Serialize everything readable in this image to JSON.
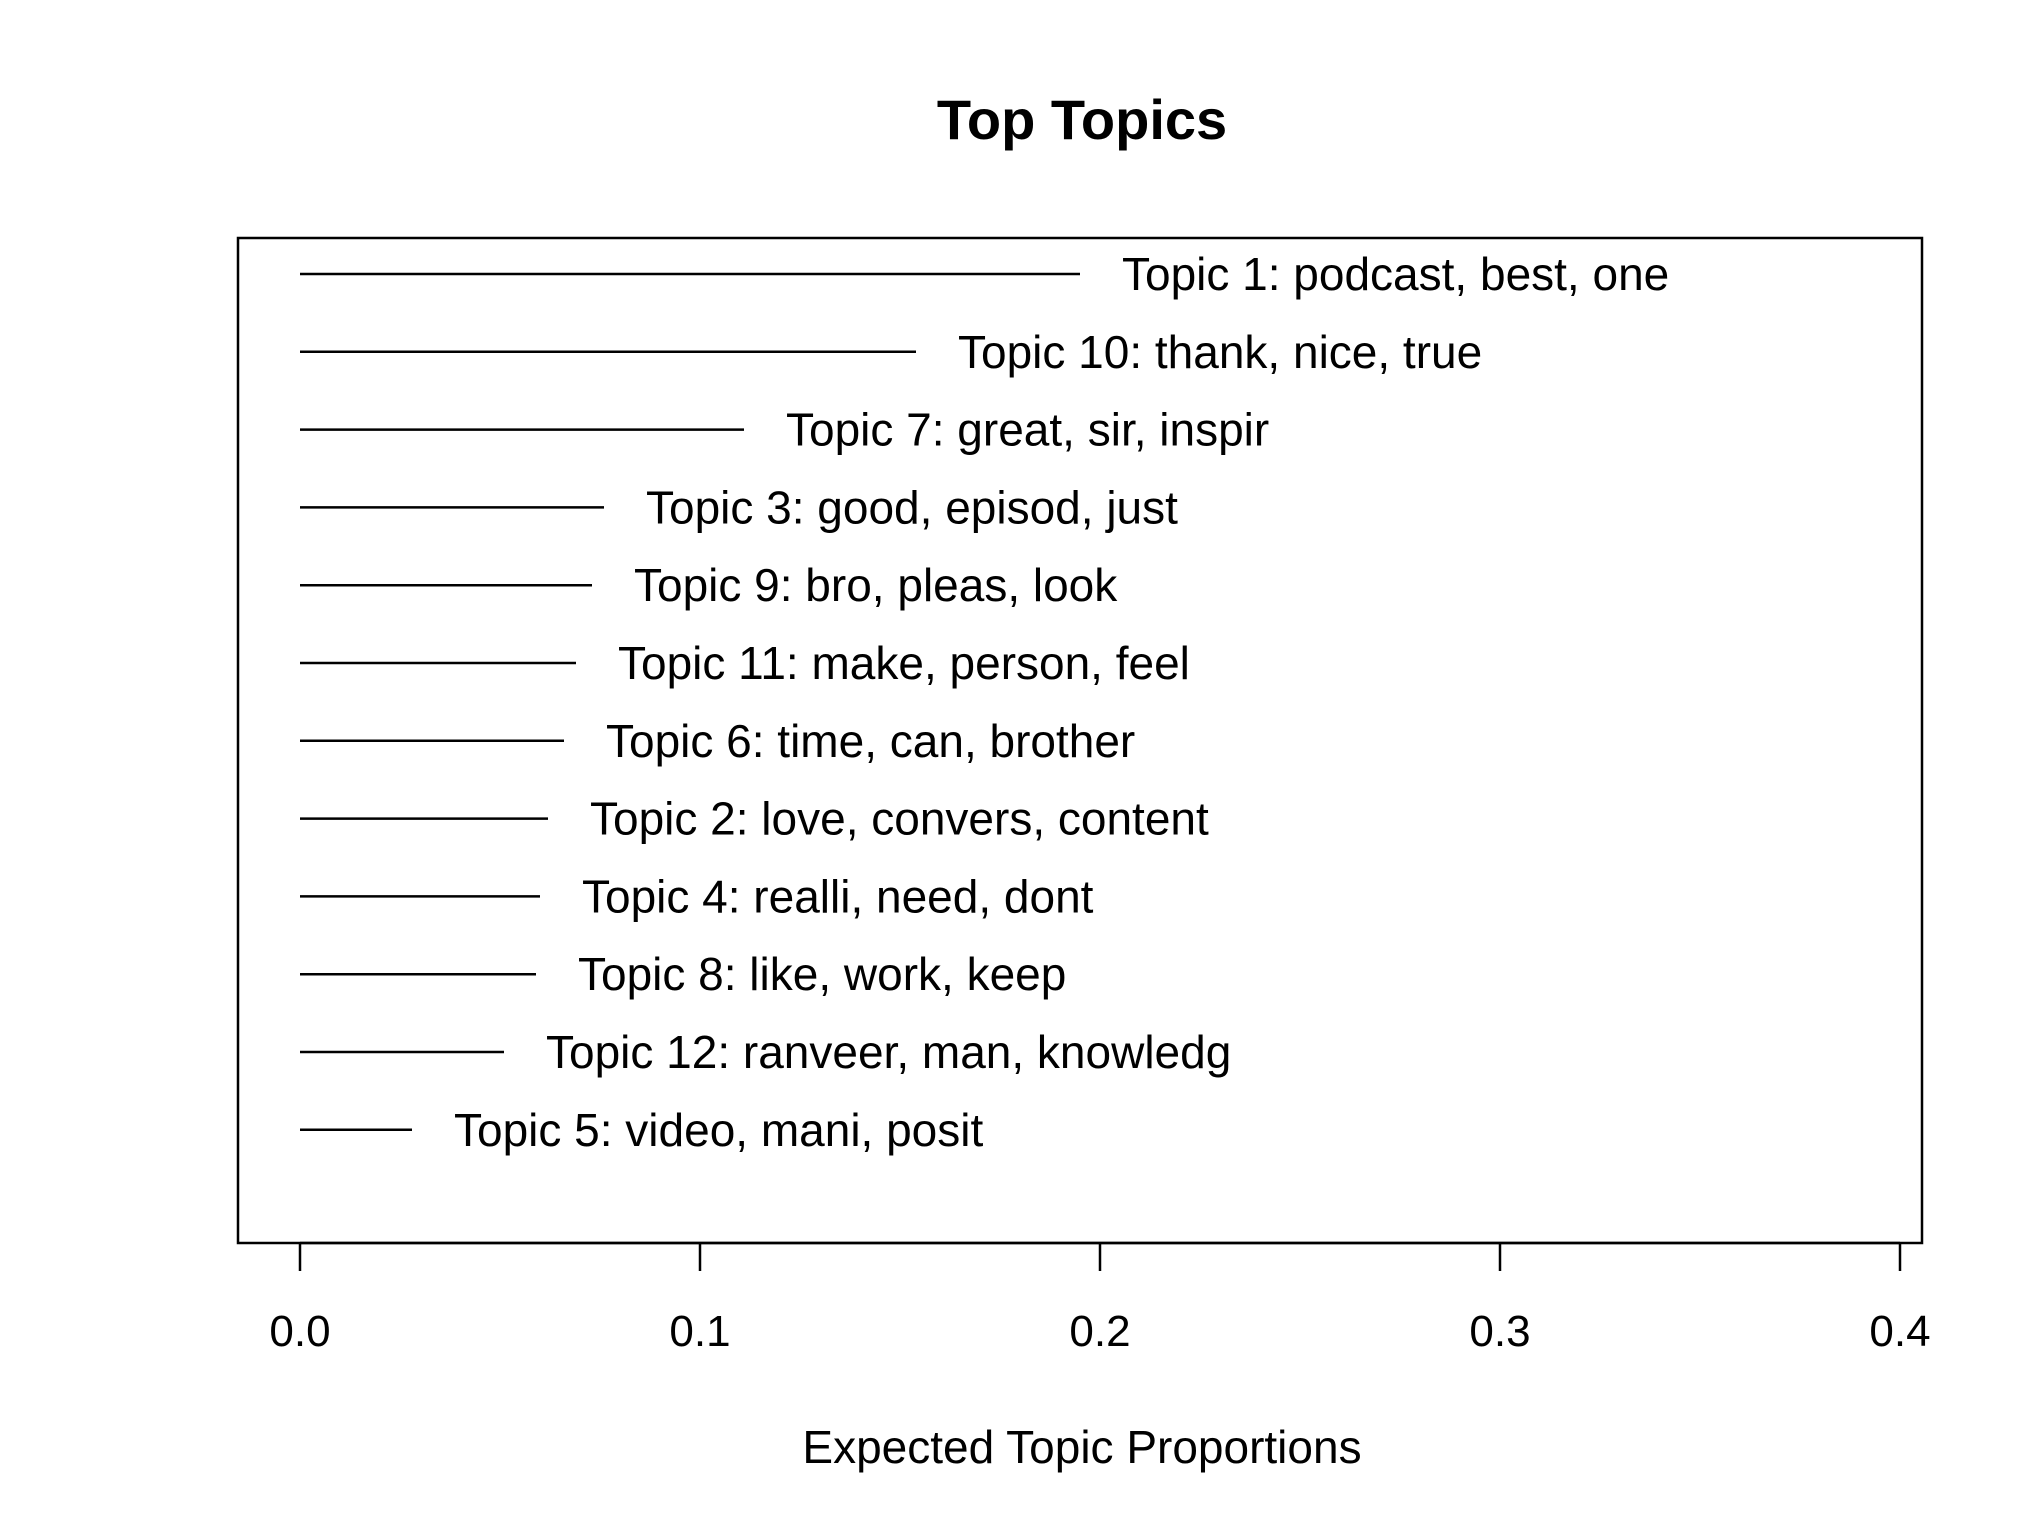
{
  "chart_data": {
    "type": "bar",
    "orientation": "horizontal",
    "title": "Top Topics",
    "xlabel": "Expected Topic Proportions",
    "ylabel": "",
    "xlim": [
      0.0,
      0.4
    ],
    "xticks": [
      "0.0",
      "0.1",
      "0.2",
      "0.3",
      "0.4"
    ],
    "grid": false,
    "legend": "none",
    "line_color": "#000000",
    "topics": [
      {
        "label": "Topic 1: podcast, best, one",
        "value": 0.195
      },
      {
        "label": "Topic 10: thank, nice, true",
        "value": 0.154
      },
      {
        "label": "Topic 7: great, sir, inspir",
        "value": 0.111
      },
      {
        "label": "Topic 3: good, episod, just",
        "value": 0.076
      },
      {
        "label": "Topic 9: bro, pleas, look",
        "value": 0.073
      },
      {
        "label": "Topic 11: make, person, feel",
        "value": 0.069
      },
      {
        "label": "Topic 6: time, can, brother",
        "value": 0.066
      },
      {
        "label": "Topic 2: love, convers, content",
        "value": 0.062
      },
      {
        "label": "Topic 4: realli, need, dont",
        "value": 0.06
      },
      {
        "label": "Topic 8: like, work, keep",
        "value": 0.059
      },
      {
        "label": "Topic 12: ranveer, man, knowledg",
        "value": 0.051
      },
      {
        "label": "Topic 5: video, mani, posit",
        "value": 0.028
      }
    ]
  }
}
